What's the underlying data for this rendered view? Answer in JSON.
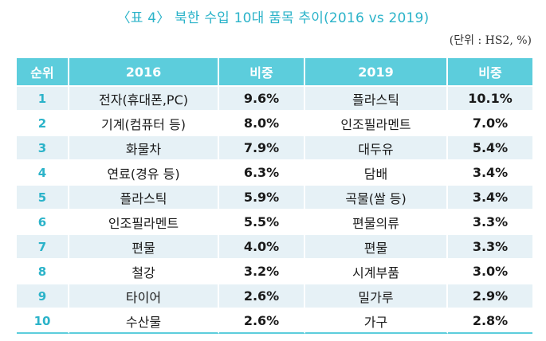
{
  "title": "〈표 4〉 북한 수입 10대 품목 추이(2016 vs 2019)",
  "unit": "(단위 : HS2, %)",
  "headers": {
    "rank": "순위",
    "y2016": "2016",
    "share1": "비중",
    "y2019": "2019",
    "share2": "비중"
  },
  "rows": [
    {
      "rank": "1",
      "item2016": "전자(휴대폰,PC)",
      "share2016": "9.6%",
      "item2019": "플라스틱",
      "share2019": "10.1%"
    },
    {
      "rank": "2",
      "item2016": "기계(컴퓨터 등)",
      "share2016": "8.0%",
      "item2019": "인조필라멘트",
      "share2019": "7.0%"
    },
    {
      "rank": "3",
      "item2016": "화물차",
      "share2016": "7.9%",
      "item2019": "대두유",
      "share2019": "5.4%"
    },
    {
      "rank": "4",
      "item2016": "연료(경유 등)",
      "share2016": "6.3%",
      "item2019": "담배",
      "share2019": "3.4%"
    },
    {
      "rank": "5",
      "item2016": "플라스틱",
      "share2016": "5.9%",
      "item2019": "곡물(쌀 등)",
      "share2019": "3.4%"
    },
    {
      "rank": "6",
      "item2016": "인조필라멘트",
      "share2016": "5.5%",
      "item2019": "편물의류",
      "share2019": "3.3%"
    },
    {
      "rank": "7",
      "item2016": "편물",
      "share2016": "4.0%",
      "item2019": "편물",
      "share2019": "3.3%"
    },
    {
      "rank": "8",
      "item2016": "철강",
      "share2016": "3.2%",
      "item2019": "시계부품",
      "share2019": "3.0%"
    },
    {
      "rank": "9",
      "item2016": "타이어",
      "share2016": "2.6%",
      "item2019": "밀가루",
      "share2019": "2.9%"
    },
    {
      "rank": "10",
      "item2016": "수산물",
      "share2016": "2.6%",
      "item2019": "가구",
      "share2019": "2.8%"
    }
  ]
}
